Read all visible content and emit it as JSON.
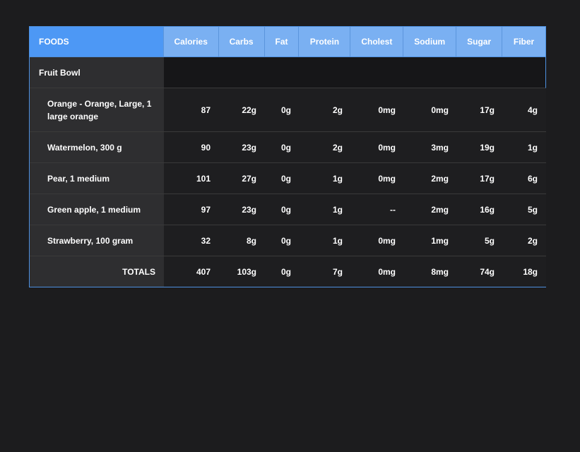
{
  "header": {
    "foods_label": "FOODS",
    "columns": [
      "Calories",
      "Carbs",
      "Fat",
      "Protein",
      "Cholest",
      "Sodium",
      "Sugar",
      "Fiber"
    ]
  },
  "group": {
    "name": "Fruit Bowl"
  },
  "items": [
    {
      "name": "Orange - Orange, Large, 1 large orange",
      "calories": "87",
      "carbs": "22g",
      "fat": "0g",
      "protein": "2g",
      "cholest": "0mg",
      "sodium": "0mg",
      "sugar": "17g",
      "fiber": "4g"
    },
    {
      "name": "Watermelon, 300 g",
      "calories": "90",
      "carbs": "23g",
      "fat": "0g",
      "protein": "2g",
      "cholest": "0mg",
      "sodium": "3mg",
      "sugar": "19g",
      "fiber": "1g"
    },
    {
      "name": "Pear, 1 medium",
      "calories": "101",
      "carbs": "27g",
      "fat": "0g",
      "protein": "1g",
      "cholest": "0mg",
      "sodium": "2mg",
      "sugar": "17g",
      "fiber": "6g"
    },
    {
      "name": "Green apple, 1 medium",
      "calories": "97",
      "carbs": "23g",
      "fat": "0g",
      "protein": "1g",
      "cholest": "--",
      "sodium": "2mg",
      "sugar": "16g",
      "fiber": "5g"
    },
    {
      "name": "Strawberry, 100 gram",
      "calories": "32",
      "carbs": "8g",
      "fat": "0g",
      "protein": "1g",
      "cholest": "0mg",
      "sodium": "1mg",
      "sugar": "5g",
      "fiber": "2g"
    }
  ],
  "totals": {
    "label": "TOTALS",
    "calories": "407",
    "carbs": "103g",
    "fat": "0g",
    "protein": "7g",
    "cholest": "0mg",
    "sodium": "8mg",
    "sugar": "74g",
    "fiber": "18g"
  },
  "colors": {
    "background": "#1c1c1e",
    "header_accent": "#4d98f5",
    "header_light": "#7ab0f2"
  }
}
